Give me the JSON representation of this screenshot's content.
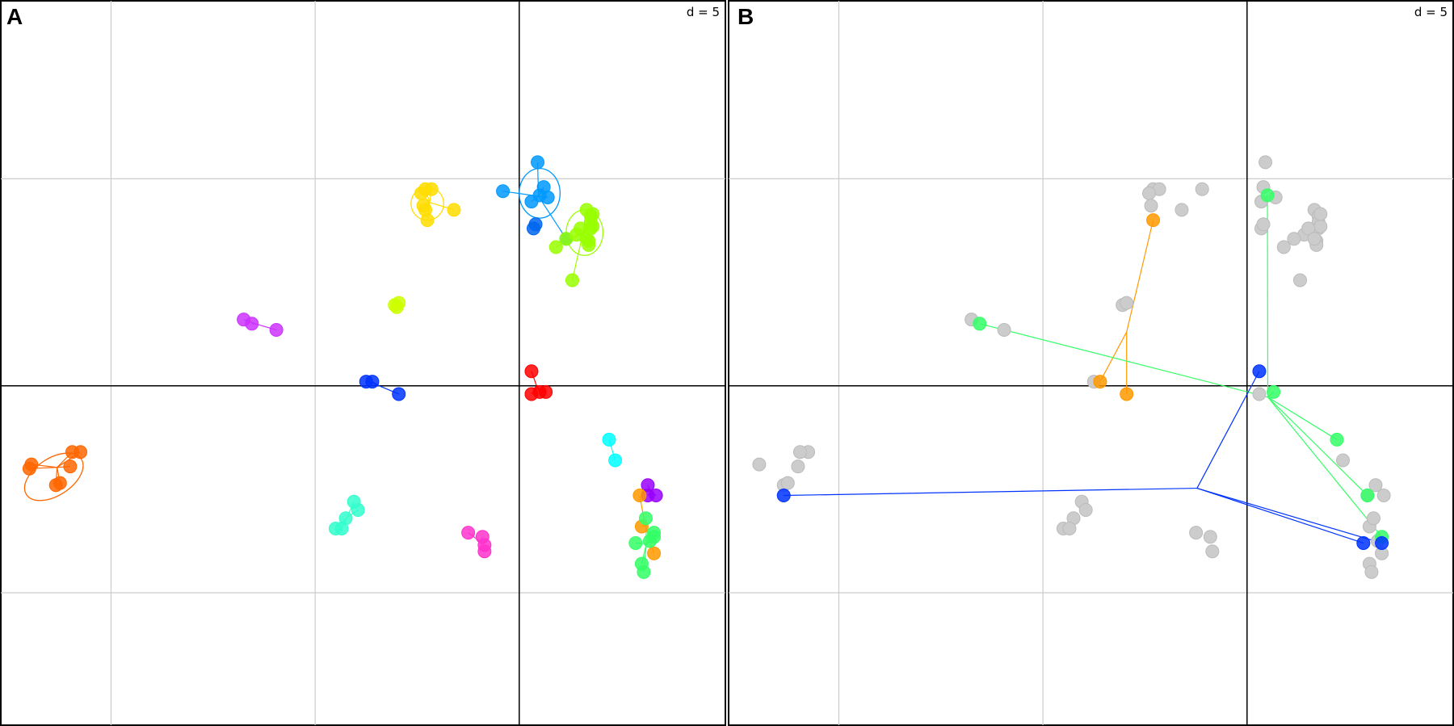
{
  "chart_data": [
    {
      "type": "scatter",
      "panel_label": "A",
      "scale_label": "d = 5",
      "grid": true,
      "xlim": [
        -20.4,
        15.1
      ],
      "ylim": [
        -16.4,
        18.6
      ],
      "x_lines": [
        -15,
        -5,
        5
      ],
      "y_lines": [
        -10,
        0,
        10
      ],
      "axis_x": 5,
      "axis_y": 0,
      "groups": [
        {
          "color": "#ff6600",
          "points": [
            [
              -18.9,
              -3.8
            ],
            [
              -16.5,
              -3.2
            ],
            [
              -17.0,
              -3.9
            ],
            [
              -17.7,
              -4.8
            ],
            [
              -16.9,
              -3.2
            ],
            [
              -17.5,
              -4.7
            ],
            [
              -19.0,
              -4.0
            ]
          ],
          "ellipse": {
            "cx": -17.8,
            "cy": -4.4,
            "rx": 1.6,
            "ry": 0.9,
            "angle": -33
          }
        },
        {
          "color": "#cc33ff",
          "points": [
            [
              -8.5,
              3.2
            ],
            [
              -8.1,
              3.0
            ],
            [
              -6.9,
              2.7
            ]
          ]
        },
        {
          "color": "#0033ff",
          "points": [
            [
              -2.5,
              0.2
            ],
            [
              -2.2,
              0.2
            ],
            [
              -0.9,
              -0.4
            ]
          ]
        },
        {
          "color": "#33ffcc",
          "points": [
            [
              -3.1,
              -5.6
            ],
            [
              -3.5,
              -6.4
            ],
            [
              -4.0,
              -6.9
            ],
            [
              -3.7,
              -6.9
            ],
            [
              -2.9,
              -6.0
            ]
          ]
        },
        {
          "color": "#ccff00",
          "points": [
            [
              -1.1,
              3.9
            ],
            [
              -0.9,
              4.0
            ],
            [
              -1.0,
              3.8
            ]
          ]
        },
        {
          "color": "#ffdd00",
          "points": [
            [
              0.4,
              9.5
            ],
            [
              0.7,
              9.5
            ],
            [
              0.2,
              9.3
            ],
            [
              0.3,
              8.7
            ],
            [
              0.4,
              8.5
            ],
            [
              1.8,
              8.5
            ],
            [
              0.5,
              8.0
            ]
          ],
          "ellipse": {
            "cx": 0.5,
            "cy": 8.8,
            "rx": 0.8,
            "ry": 0.8,
            "angle": 0
          }
        },
        {
          "color": "#ff33cc",
          "points": [
            [
              2.5,
              -7.1
            ],
            [
              3.3,
              -8.0
            ],
            [
              3.2,
              -7.3
            ],
            [
              3.3,
              -7.7
            ]
          ]
        },
        {
          "color": "#ff0000",
          "points": [
            [
              5.6,
              0.7
            ],
            [
              5.6,
              -0.4
            ],
            [
              6.0,
              -0.3
            ],
            [
              6.3,
              -0.3
            ]
          ]
        },
        {
          "color": "#0099ff",
          "points": [
            [
              4.2,
              9.4
            ],
            [
              5.9,
              10.8
            ],
            [
              6.2,
              9.6
            ],
            [
              6.4,
              9.1
            ],
            [
              6.0,
              9.2
            ],
            [
              5.6,
              8.9
            ],
            [
              7.3,
              7.1
            ]
          ],
          "ellipse": {
            "cx": 6.0,
            "cy": 9.3,
            "rx": 1.0,
            "ry": 1.2,
            "angle": 0
          }
        },
        {
          "color": "#0066ee",
          "points": [
            [
              5.7,
              7.6
            ],
            [
              5.8,
              7.8
            ]
          ]
        },
        {
          "color": "#99ff00",
          "points": [
            [
              8.3,
              8.5
            ],
            [
              8.5,
              8.2
            ],
            [
              8.5,
              7.9
            ],
            [
              8.5,
              7.6
            ],
            [
              8.4,
              7.0
            ],
            [
              8.4,
              6.8
            ],
            [
              8.6,
              7.7
            ],
            [
              8.6,
              8.3
            ],
            [
              7.8,
              7.3
            ],
            [
              8.0,
              7.6
            ],
            [
              8.3,
              7.1
            ],
            [
              7.3,
              7.1
            ],
            [
              7.6,
              5.1
            ],
            [
              6.8,
              6.7
            ]
          ],
          "ellipse": {
            "cx": 8.2,
            "cy": 7.4,
            "rx": 0.9,
            "ry": 1.1,
            "angle": 0
          }
        },
        {
          "color": "#00ffff",
          "points": [
            [
              9.4,
              -2.6
            ],
            [
              9.7,
              -3.6
            ]
          ]
        },
        {
          "color": "#9900ff",
          "points": [
            [
              11.3,
              -4.8
            ],
            [
              11.7,
              -5.3
            ],
            [
              11.3,
              -5.3
            ]
          ]
        },
        {
          "color": "#ff9900",
          "points": [
            [
              10.9,
              -5.3
            ],
            [
              11.0,
              -6.8
            ],
            [
              11.6,
              -8.1
            ]
          ]
        },
        {
          "color": "#33ff66",
          "points": [
            [
              11.2,
              -6.4
            ],
            [
              11.6,
              -7.1
            ],
            [
              11.4,
              -7.5
            ],
            [
              10.7,
              -7.6
            ],
            [
              11.0,
              -8.6
            ],
            [
              11.1,
              -9.0
            ],
            [
              11.6,
              -7.3
            ]
          ]
        }
      ]
    },
    {
      "type": "scatter",
      "panel_label": "B",
      "scale_label": "d = 5",
      "grid": true,
      "xlim": [
        -20.4,
        15.1
      ],
      "ylim": [
        -16.4,
        18.6
      ],
      "x_lines": [
        -15,
        -5,
        5
      ],
      "y_lines": [
        -10,
        0,
        10
      ],
      "axis_x": 5,
      "axis_y": 0,
      "groups": [
        {
          "color": "#cccccc",
          "points": [
            [
              -18.9,
              -3.8
            ],
            [
              -16.5,
              -3.2
            ],
            [
              -17.0,
              -3.9
            ],
            [
              -17.7,
              -4.8
            ],
            [
              -16.9,
              -3.2
            ],
            [
              -17.5,
              -4.7
            ],
            [
              -8.5,
              3.2
            ],
            [
              -6.9,
              2.7
            ],
            [
              -2.5,
              0.2
            ],
            [
              -3.1,
              -5.6
            ],
            [
              -3.5,
              -6.4
            ],
            [
              -4.0,
              -6.9
            ],
            [
              -3.7,
              -6.9
            ],
            [
              -2.9,
              -6.0
            ],
            [
              -1.1,
              3.9
            ],
            [
              -0.9,
              4.0
            ],
            [
              0.4,
              9.5
            ],
            [
              0.7,
              9.5
            ],
            [
              0.2,
              9.3
            ],
            [
              0.3,
              8.7
            ],
            [
              1.8,
              8.5
            ],
            [
              2.8,
              9.5
            ],
            [
              2.5,
              -7.1
            ],
            [
              3.3,
              -8.0
            ],
            [
              3.2,
              -7.3
            ],
            [
              5.6,
              -0.4
            ],
            [
              5.9,
              10.8
            ],
            [
              5.8,
              9.6
            ],
            [
              6.4,
              9.1
            ],
            [
              5.7,
              8.9
            ],
            [
              5.7,
              7.6
            ],
            [
              5.8,
              7.8
            ],
            [
              8.3,
              8.5
            ],
            [
              8.5,
              8.2
            ],
            [
              8.5,
              7.9
            ],
            [
              8.5,
              7.6
            ],
            [
              8.4,
              7.0
            ],
            [
              8.4,
              6.8
            ],
            [
              8.6,
              7.7
            ],
            [
              8.6,
              8.3
            ],
            [
              7.8,
              7.3
            ],
            [
              8.0,
              7.6
            ],
            [
              8.3,
              7.1
            ],
            [
              7.3,
              7.1
            ],
            [
              7.6,
              5.1
            ],
            [
              6.8,
              6.7
            ],
            [
              9.7,
              -3.6
            ],
            [
              11.3,
              -4.8
            ],
            [
              11.7,
              -5.3
            ],
            [
              10.9,
              -5.3
            ],
            [
              11.0,
              -6.8
            ],
            [
              11.6,
              -8.1
            ],
            [
              11.2,
              -6.4
            ],
            [
              11.4,
              -7.5
            ],
            [
              11.0,
              -8.6
            ],
            [
              11.1,
              -9.0
            ]
          ]
        },
        {
          "color": "#ff9900",
          "points": [
            [
              0.4,
              8.0
            ],
            [
              -2.2,
              0.2
            ],
            [
              -0.9,
              -0.4
            ]
          ]
        },
        {
          "color": "#33ff66",
          "points": [
            [
              -8.1,
              3.0
            ],
            [
              6.0,
              9.2
            ],
            [
              6.3,
              -0.3
            ],
            [
              9.4,
              -2.6
            ],
            [
              10.9,
              -5.3
            ],
            [
              11.6,
              -7.3
            ]
          ]
        },
        {
          "color": "#0033ff",
          "points": [
            [
              -17.7,
              -5.3
            ],
            [
              5.6,
              0.7
            ],
            [
              11.6,
              -7.6
            ],
            [
              10.7,
              -7.6
            ]
          ]
        }
      ]
    }
  ]
}
